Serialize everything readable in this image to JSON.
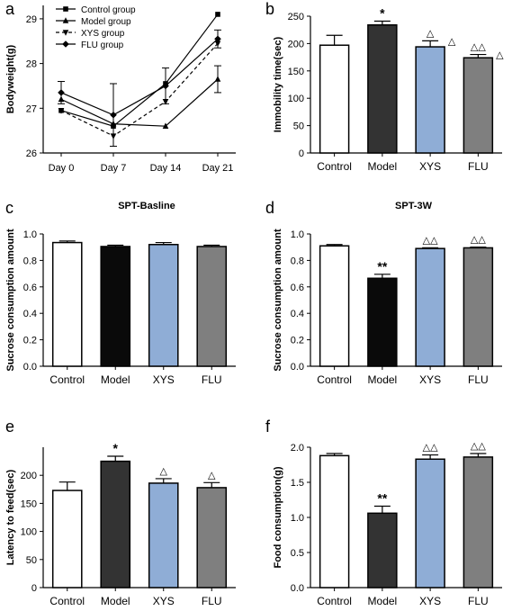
{
  "figure": {
    "panels": [
      {
        "letter": "a",
        "kind": "line"
      },
      {
        "letter": "b",
        "kind": "bar"
      },
      {
        "letter": "c",
        "kind": "bar"
      },
      {
        "letter": "d",
        "kind": "bar"
      },
      {
        "letter": "e",
        "kind": "bar"
      },
      {
        "letter": "f",
        "kind": "bar"
      }
    ],
    "colors": {
      "white_bar": "#ffffff",
      "model_dark": "#333333",
      "model_black": "#0a0a0a",
      "xys_blue": "#8fadd6",
      "flu_gray": "#7f7f7f",
      "axis": "#000000"
    },
    "markers": {
      "Control group": "square",
      "Model group": "triangle-up",
      "XYS group": "triangle-down",
      "FLU  group": "diamond"
    }
  },
  "chart_data": [
    {
      "type": "line",
      "panel": "a",
      "title": "",
      "xlabel": "",
      "ylabel": "Bodyweight(g)",
      "categories": [
        "Day 0",
        "Day 7",
        "Day 14",
        "Day 21"
      ],
      "ylim": [
        26,
        29.3
      ],
      "yticks": [
        26,
        27,
        28,
        29
      ],
      "legend_position": "top-left",
      "series": [
        {
          "name": "Control group",
          "values": [
            26.95,
            26.6,
            27.55,
            29.1
          ],
          "errors": [
            0,
            0,
            0,
            0
          ],
          "dashed": false
        },
        {
          "name": "Model group",
          "values": [
            27.2,
            26.65,
            26.6,
            27.65
          ],
          "errors": [
            0,
            0,
            0,
            0.3
          ],
          "dashed": false
        },
        {
          "name": "XYS group",
          "values": [
            26.95,
            26.38,
            27.15,
            28.45
          ],
          "errors": [
            0,
            0,
            0,
            0
          ],
          "dashed": true
        },
        {
          "name": "FLU  group",
          "values": [
            27.35,
            26.85,
            27.5,
            28.55
          ],
          "errors": [
            0.25,
            0.7,
            0.4,
            0.2
          ],
          "dashed": false
        }
      ]
    },
    {
      "type": "bar",
      "panel": "b",
      "title": "",
      "xlabel": "",
      "ylabel": "Immobility time(sec)",
      "categories": [
        "Control",
        "Model",
        "XYS",
        "FLU"
      ],
      "values": [
        197,
        234,
        194,
        174
      ],
      "errors": [
        18,
        7,
        11,
        6
      ],
      "annotations": [
        "",
        "*",
        "△",
        "△△"
      ],
      "side_annotations": [
        "",
        "",
        "△",
        "△"
      ],
      "colors": [
        "#ffffff",
        "#333333",
        "#8fadd6",
        "#7f7f7f"
      ],
      "ylim": [
        0,
        250
      ],
      "yticks": [
        0,
        50,
        100,
        150,
        200,
        250
      ]
    },
    {
      "type": "bar",
      "panel": "c",
      "title": "SPT-Basline",
      "xlabel": "",
      "ylabel": "Sucrose consumption amount",
      "categories": [
        "Control",
        "Model",
        "XYS",
        "FLU"
      ],
      "values": [
        0.935,
        0.905,
        0.92,
        0.905
      ],
      "errors": [
        0.012,
        0.01,
        0.015,
        0.01
      ],
      "annotations": [
        "",
        "",
        "",
        ""
      ],
      "side_annotations": [
        "",
        "",
        "",
        ""
      ],
      "colors": [
        "#ffffff",
        "#0a0a0a",
        "#8fadd6",
        "#7f7f7f"
      ],
      "ylim": [
        0,
        1.0
      ],
      "yticks": [
        0.0,
        0.2,
        0.4,
        0.6,
        0.8,
        1.0
      ],
      "tick_decimals": 1
    },
    {
      "type": "bar",
      "panel": "d",
      "title": "SPT-3W",
      "xlabel": "",
      "ylabel": "Sucrose consumption amount",
      "categories": [
        "Control",
        "Model",
        "XYS",
        "FLU"
      ],
      "values": [
        0.91,
        0.665,
        0.89,
        0.895
      ],
      "errors": [
        0.01,
        0.03,
        0.006,
        0.006
      ],
      "annotations": [
        "",
        "**",
        "△△",
        "△△"
      ],
      "side_annotations": [
        "",
        "",
        "",
        ""
      ],
      "colors": [
        "#ffffff",
        "#0a0a0a",
        "#8fadd6",
        "#7f7f7f"
      ],
      "ylim": [
        0,
        1.0
      ],
      "yticks": [
        0.0,
        0.2,
        0.4,
        0.6,
        0.8,
        1.0
      ],
      "tick_decimals": 1
    },
    {
      "type": "bar",
      "panel": "e",
      "title": "",
      "xlabel": "",
      "ylabel": "Latency to feed(sec)",
      "categories": [
        "Control",
        "Model",
        "XYS",
        "FLU"
      ],
      "values": [
        173,
        225,
        186,
        178
      ],
      "errors": [
        15,
        9,
        8,
        9
      ],
      "annotations": [
        "",
        "*",
        "△",
        "△"
      ],
      "side_annotations": [
        "",
        "",
        "",
        ""
      ],
      "colors": [
        "#ffffff",
        "#333333",
        "#8fadd6",
        "#7f7f7f"
      ],
      "ylim": [
        0,
        250
      ],
      "yticks": [
        0,
        50,
        100,
        150,
        200
      ],
      "tick_decimals": 0
    },
    {
      "type": "bar",
      "panel": "f",
      "title": "",
      "xlabel": "",
      "ylabel": "Food consumption(g)",
      "categories": [
        "Control",
        "Model",
        "XYS",
        "FLU"
      ],
      "values": [
        1.88,
        1.06,
        1.83,
        1.86
      ],
      "errors": [
        0.03,
        0.1,
        0.06,
        0.05
      ],
      "annotations": [
        "",
        "**",
        "△△",
        "△△"
      ],
      "side_annotations": [
        "",
        "",
        "",
        ""
      ],
      "colors": [
        "#ffffff",
        "#333333",
        "#8fadd6",
        "#7f7f7f"
      ],
      "ylim": [
        0,
        2.0
      ],
      "yticks": [
        0.0,
        0.5,
        1.0,
        1.5,
        2.0
      ],
      "tick_decimals": 1
    }
  ]
}
